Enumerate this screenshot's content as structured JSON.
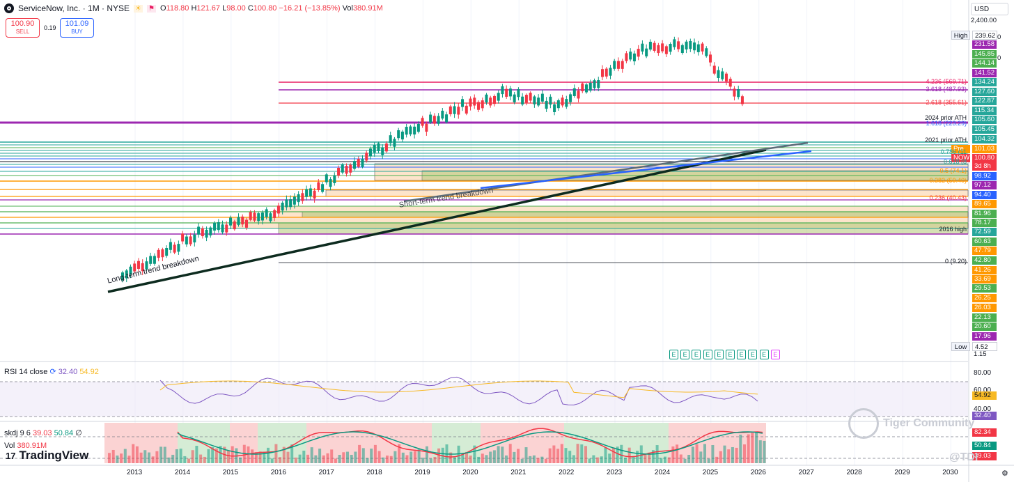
{
  "header": {
    "symbol_title": "ServiceNow, Inc. · 1M · NYSE",
    "open_label": "O",
    "open": "118.80",
    "high_label": "H",
    "high": "121.67",
    "low_label": "L",
    "low": "98.00",
    "close_label": "C",
    "close": "100.80",
    "change": "−16.21 (−13.85%)",
    "vol_label": "Vol",
    "vol": "380.91M"
  },
  "trade": {
    "sell_price": "100.90",
    "sell_label": "SELL",
    "spread": "0.19",
    "buy_price": "101.09",
    "buy_label": "BUY"
  },
  "currency": "USD",
  "price_scale_top": "2,400.00",
  "high_box": {
    "label": "High",
    "value": "239.62"
  },
  "low_box": {
    "label": "Low",
    "value": "4.52"
  },
  "low_extra": "1.15",
  "price_labels": [
    {
      "text": "231.58",
      "color": "#9c27b0"
    },
    {
      "text": "145.85",
      "color": "#4caf50"
    },
    {
      "text": "144.14",
      "color": "#4caf50"
    },
    {
      "text": "141.52",
      "color": "#9c27b0"
    },
    {
      "text": "134.24",
      "color": "#26a69a"
    },
    {
      "text": "127.60",
      "color": "#26a69a"
    },
    {
      "text": "122.87",
      "color": "#26a69a"
    },
    {
      "text": "115.34",
      "color": "#26a69a"
    },
    {
      "text": "105.60",
      "color": "#26a69a"
    },
    {
      "text": "105.45",
      "color": "#26a69a"
    },
    {
      "text": "104.32",
      "color": "#26a69a"
    },
    {
      "text": "101.03",
      "color": "#ff9800",
      "tag": "Pre"
    },
    {
      "text": "100.80",
      "color": "#f23645",
      "tag": "NOW"
    },
    {
      "text": "3d 8h",
      "color": "#f23645"
    },
    {
      "text": "98.92",
      "color": "#2962ff"
    },
    {
      "text": "97.12",
      "color": "#9c27b0"
    },
    {
      "text": "94.40",
      "color": "#2962ff"
    },
    {
      "text": "89.65",
      "color": "#ff9800"
    },
    {
      "text": "81.96",
      "color": "#4caf50"
    },
    {
      "text": "78.17",
      "color": "#4caf50"
    },
    {
      "text": "72.59",
      "color": "#26a69a"
    },
    {
      "text": "60.63",
      "color": "#4caf50"
    },
    {
      "text": "47.79",
      "color": "#ff9800"
    },
    {
      "text": "42.80",
      "color": "#4caf50"
    },
    {
      "text": "41.26",
      "color": "#ff9800"
    },
    {
      "text": "33.69",
      "color": "#ff9800"
    },
    {
      "text": "29.53",
      "color": "#4caf50"
    },
    {
      "text": "26.25",
      "color": "#ff9800"
    },
    {
      "text": "26.03",
      "color": "#ff9800"
    },
    {
      "text": "22.13",
      "color": "#4caf50"
    },
    {
      "text": "20.60",
      "color": "#4caf50"
    },
    {
      "text": "17.96",
      "color": "#9c27b0"
    }
  ],
  "scale_side_marks": [
    "0",
    "0"
  ],
  "fib_labels": [
    {
      "text": "4.236 (569.71)",
      "color": "#e91e63"
    },
    {
      "text": "3.618 (487.93)",
      "color": "#9c27b0"
    },
    {
      "text": "2.618 (355.61)",
      "color": "#f23645"
    },
    {
      "text": "2024 prior ATH",
      "color": "#131722"
    },
    {
      "text": "1.618 (223.29)",
      "color": "#2962ff"
    },
    {
      "text": "2021 prior ATH",
      "color": "#131722"
    },
    {
      "text": "0.786 (11",
      "color": "#26a69a"
    },
    {
      "text": "0.618 (8",
      "color": "#26a69a"
    },
    {
      "text": "0.5 (74.1)",
      "color": "#ff9800"
    },
    {
      "text": "0.382 (59.40)",
      "color": "#ff9800"
    },
    {
      "text": "0.236 (40.43)",
      "color": "#f23645"
    },
    {
      "text": "2016 high",
      "color": "#131722"
    },
    {
      "text": "0 (9.20)",
      "color": "#131722"
    }
  ],
  "annotations": {
    "long_trend": "Long-term trend breakdown",
    "short_trend": "Short-term trend breakdown"
  },
  "earnings_markers": [
    "E",
    "E",
    "E",
    "E",
    "E",
    "E",
    "E",
    "E",
    "E",
    "E"
  ],
  "rsi": {
    "title": "RSI 14 close",
    "value": "32.40",
    "ma": "54.92",
    "value_color": "#7e57c2",
    "ma_color": "#f7b924",
    "levels": [
      "80.00",
      "60.00",
      "40.00"
    ],
    "tags": [
      "54.92",
      "32.40"
    ]
  },
  "skdj": {
    "title": "skdj 9 6",
    "k": "39.03",
    "d": "50.84",
    "extra": "∅",
    "tags": [
      "82.34",
      "50.84",
      "39.03"
    ]
  },
  "volume": {
    "label": "Vol",
    "value": "380.91M"
  },
  "branding": {
    "logo_mark": "17",
    "name": "TradingView"
  },
  "watermark": {
    "text": "Tiger Community",
    "handle": "@TDI"
  },
  "x_axis": [
    "2013",
    "2014",
    "2015",
    "2016",
    "2017",
    "2018",
    "2019",
    "2020",
    "2021",
    "2022",
    "2023",
    "2024",
    "2025",
    "2026",
    "2027",
    "2028",
    "2029",
    "2030"
  ],
  "chart_data": {
    "type": "candlestick",
    "title": "ServiceNow, Inc. · 1M · NYSE",
    "y_scale": "log",
    "x": [
      "2013",
      "2014",
      "2015",
      "2016",
      "2017",
      "2018",
      "2019",
      "2020",
      "2021",
      "2022",
      "2023",
      "2024",
      "2025",
      "2026"
    ],
    "close_approx": [
      11,
      16,
      21,
      24,
      33,
      49,
      70,
      95,
      115,
      98,
      140,
      210,
      205,
      100.8
    ],
    "rsi_current": 32.4,
    "rsi_ma_current": 54.92
  }
}
